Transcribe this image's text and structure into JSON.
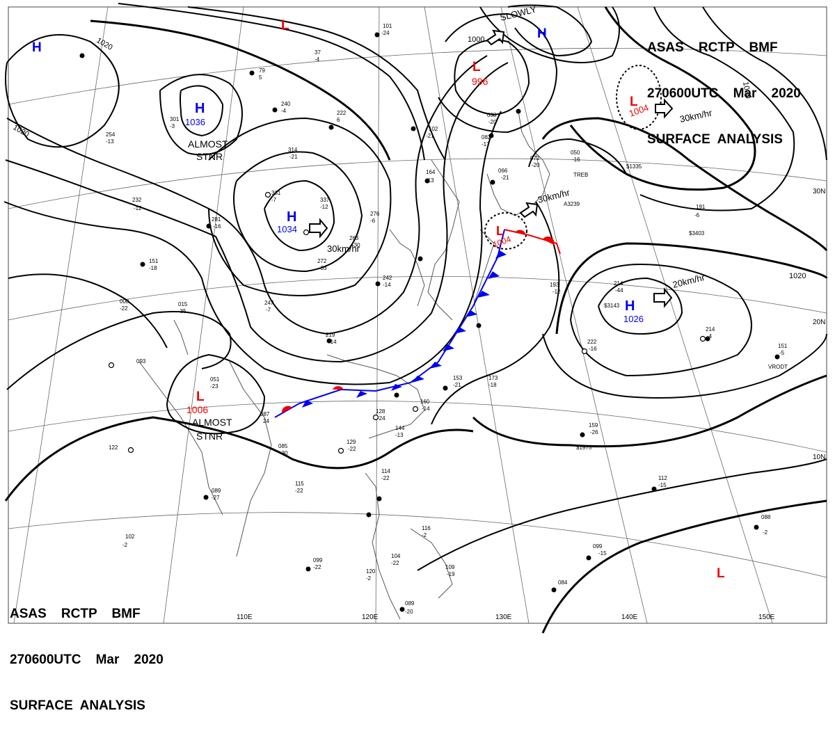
{
  "header": {
    "line1": [
      "ASAS",
      "RCTP",
      "BMF"
    ],
    "line2": [
      "270600UTC",
      "Mar",
      "2020"
    ],
    "line3": "SURFACE  ANALYSIS"
  },
  "colors": {
    "high": "#0000ee",
    "low": "#ee0000",
    "cold_front": "#0000ee",
    "warm_front": "#ee0000",
    "isobar": "#000000",
    "coast": "#555555",
    "grid": "#666666"
  },
  "grid_labels": {
    "longitudes": [
      "110E",
      "120E",
      "130E",
      "140E",
      "150E"
    ],
    "latitudes": [
      "30N",
      "20N",
      "10N"
    ]
  },
  "isobar_labels": [
    "1020",
    "1020",
    "1020",
    "1020",
    "1000"
  ],
  "pressure_centers": [
    {
      "type": "H",
      "value": ""
    },
    {
      "type": "H",
      "value": "1036",
      "note1": "ALMOST",
      "note2": "STNR"
    },
    {
      "type": "H",
      "value": "1034",
      "speed": "30km/hr"
    },
    {
      "type": "L",
      "value": ""
    },
    {
      "type": "L",
      "value": "996"
    },
    {
      "type": "H",
      "value": "",
      "note1": "SLOWLY"
    },
    {
      "type": "L",
      "value": "1004",
      "speed": "30km/hr"
    },
    {
      "type": "L",
      "value": "1004",
      "speed": "30km/hr"
    },
    {
      "type": "H",
      "value": "1026",
      "speed": "20km/hr"
    },
    {
      "type": "L",
      "value": "1006",
      "note1": "ALMOST",
      "note2": "STNR"
    },
    {
      "type": "L",
      "value": ""
    }
  ],
  "station_plots": [
    [
      "101",
      "-24"
    ],
    [
      "37",
      "-4"
    ],
    [
      "79",
      "5"
    ],
    [
      "240",
      "-4"
    ],
    [
      "222",
      "6"
    ],
    [
      "314",
      "-21"
    ],
    [
      "254",
      "-13"
    ],
    [
      "301",
      "-3"
    ],
    [
      "331",
      "-7"
    ],
    [
      "337",
      "-12"
    ],
    [
      "263",
      "-30"
    ],
    [
      "276",
      "-6"
    ],
    [
      "151",
      "-18"
    ],
    [
      "164",
      "-13"
    ],
    [
      "102",
      "-21"
    ],
    [
      "038",
      "-20"
    ],
    [
      "082",
      "-17"
    ],
    [
      "066",
      "-21"
    ],
    [
      "072",
      "-20"
    ],
    [
      "050",
      "-16"
    ],
    [
      "191",
      "-6"
    ],
    [
      "247",
      "-7"
    ],
    [
      "272",
      "-33"
    ],
    [
      "242",
      "-14"
    ],
    [
      "008",
      "-22"
    ],
    [
      "015",
      "-35"
    ],
    [
      "219",
      "-14"
    ],
    [
      "093",
      ""
    ],
    [
      "051",
      "-23"
    ],
    [
      "087",
      "24"
    ],
    [
      "085",
      "-30"
    ],
    [
      "129",
      "-22"
    ],
    [
      "128",
      "-24"
    ],
    [
      "144",
      "-13"
    ],
    [
      "160",
      "-14"
    ],
    [
      "153",
      "-21"
    ],
    [
      "173",
      "-18"
    ],
    [
      "193",
      "-12"
    ],
    [
      "214",
      "-44"
    ],
    [
      "222",
      "-16"
    ],
    [
      "214",
      "-4"
    ],
    [
      "151",
      "-5"
    ],
    [
      "159",
      "-26"
    ],
    [
      "122",
      ""
    ],
    [
      "115",
      "-22"
    ],
    [
      "089",
      "-27"
    ],
    [
      "102",
      "-2"
    ],
    [
      "099",
      "-22"
    ],
    [
      "120",
      "-2"
    ],
    [
      "114",
      "-22"
    ],
    [
      "116",
      "-2"
    ],
    [
      "104",
      "-22"
    ],
    [
      "109",
      "-19"
    ],
    [
      "089",
      "-20"
    ],
    [
      "112",
      "-15"
    ],
    [
      "088",
      "-2"
    ],
    [
      "099",
      "-15"
    ],
    [
      "084",
      ""
    ],
    [
      "232",
      "-12"
    ],
    [
      "281",
      "-16"
    ]
  ],
  "map_notes": [
    "$1335",
    "$3403",
    "$3143",
    "$1975",
    "VRODT",
    "TREB",
    "A3239"
  ]
}
